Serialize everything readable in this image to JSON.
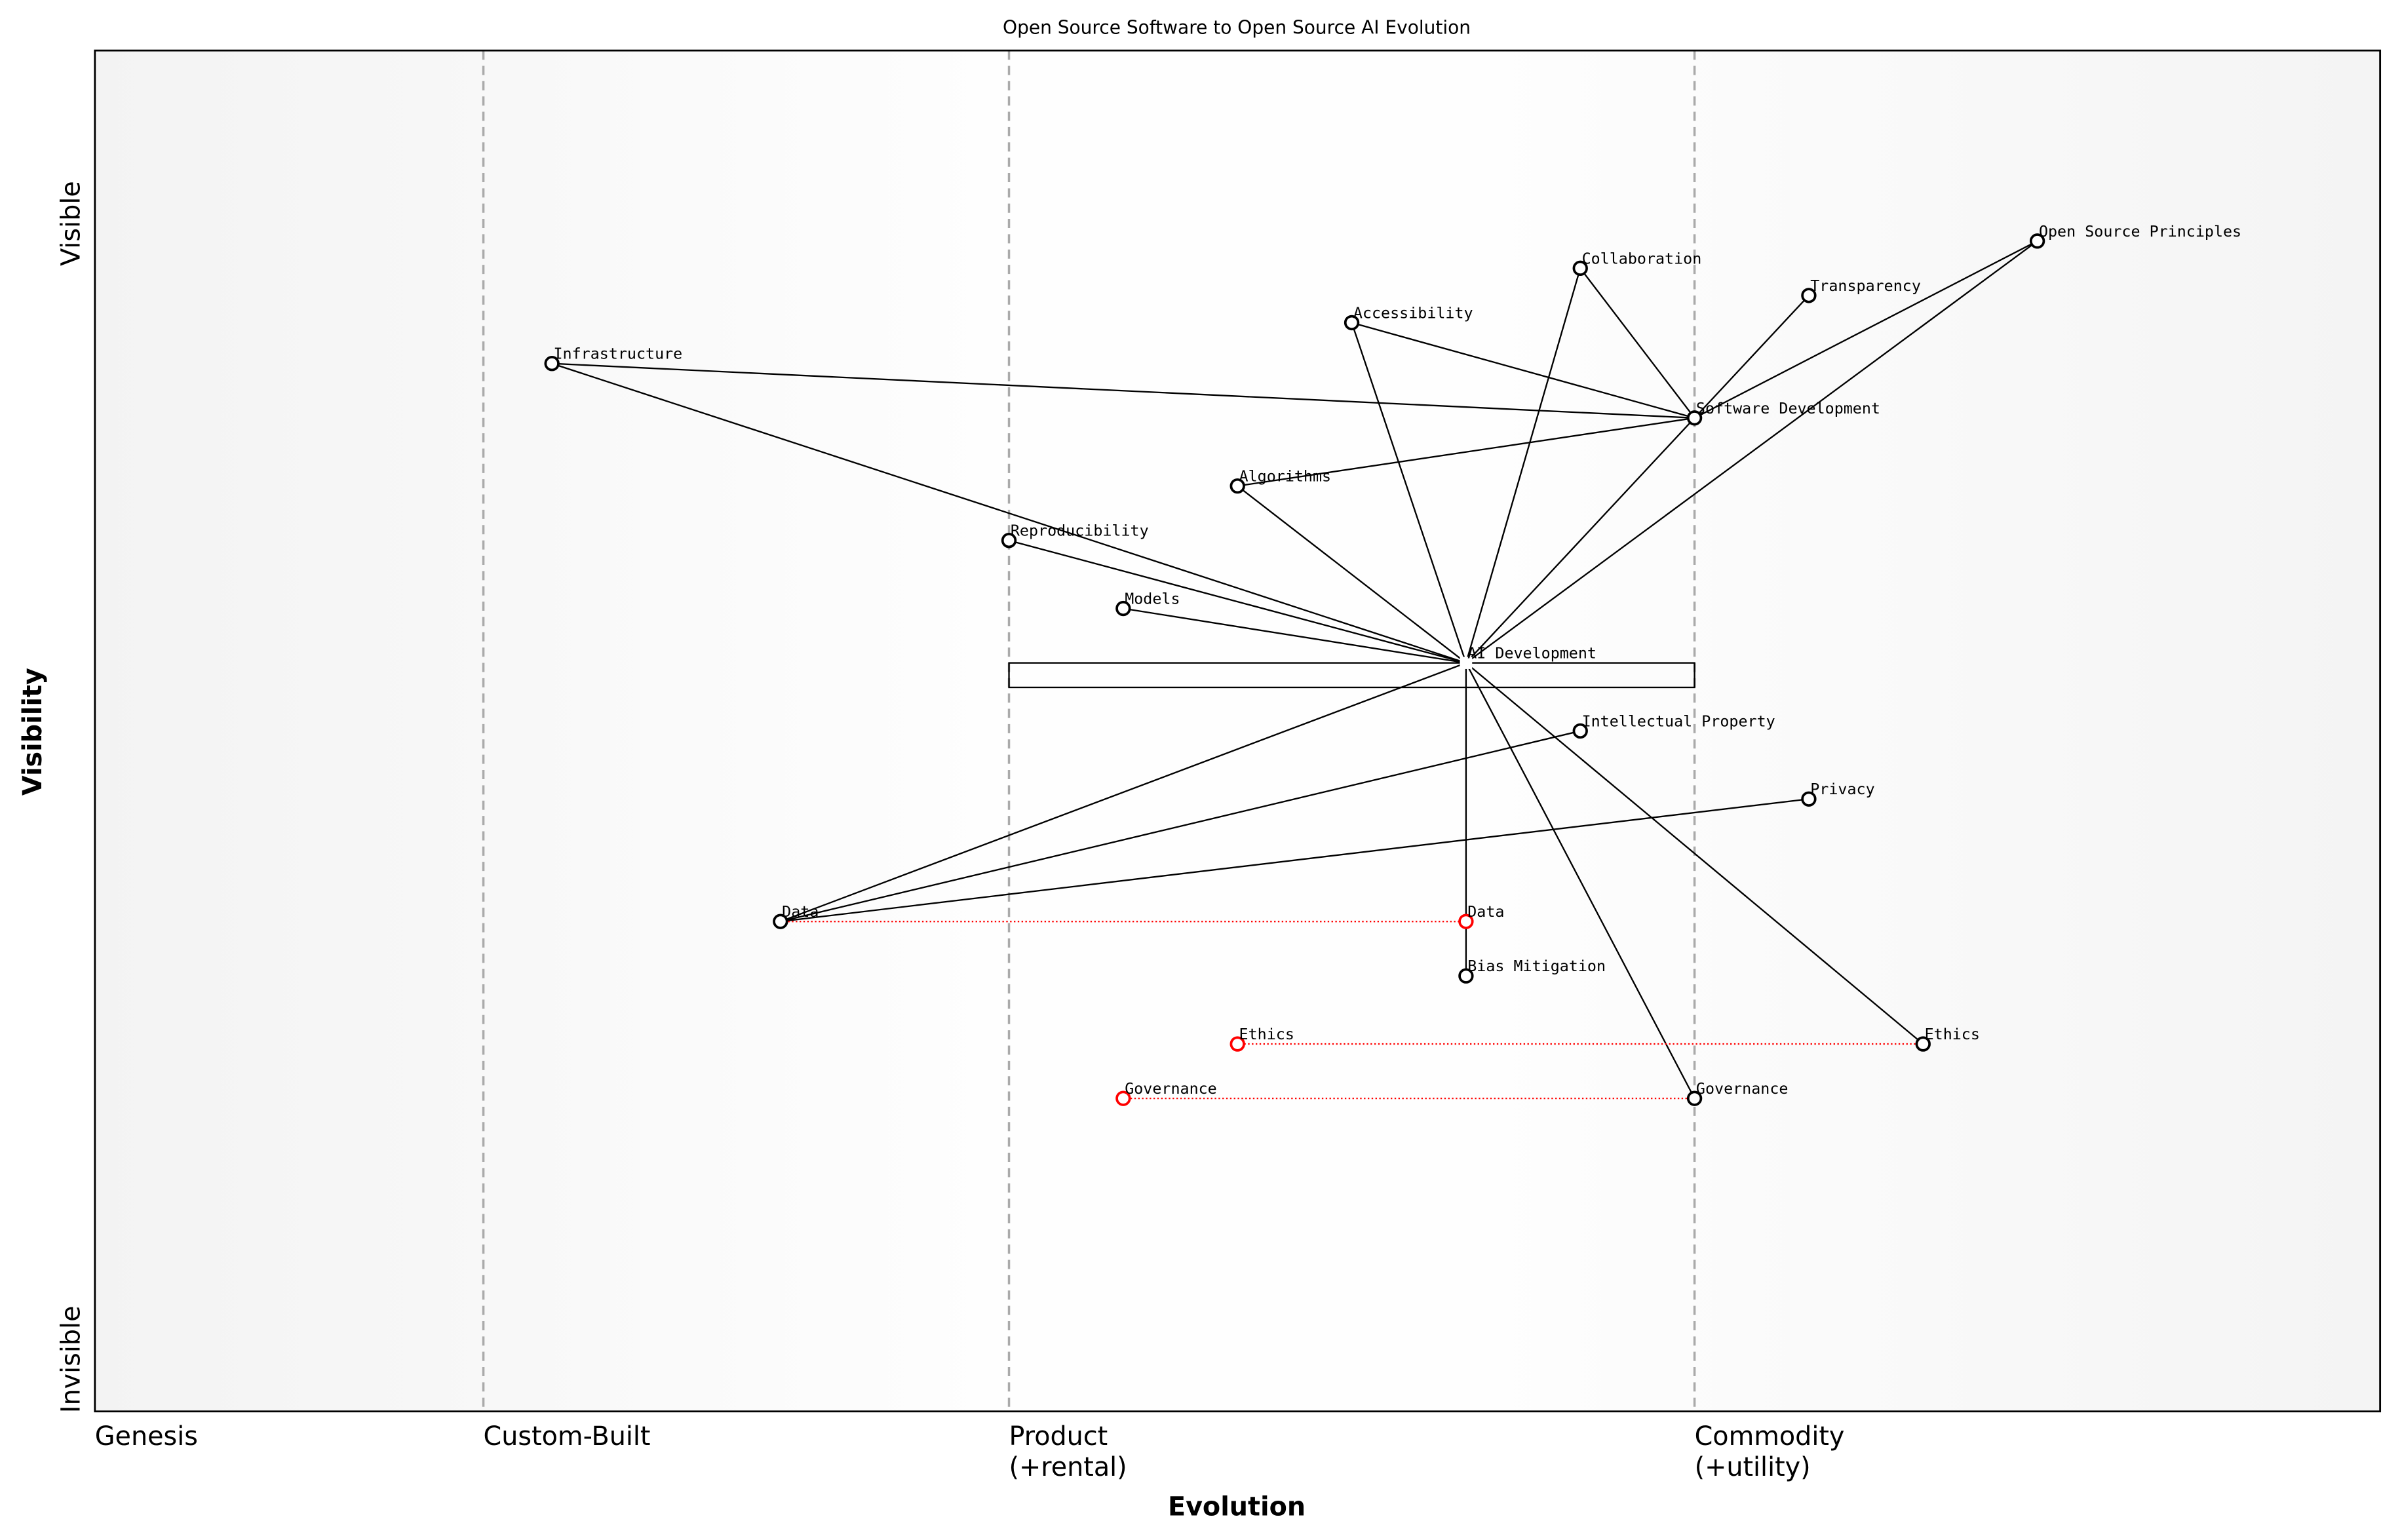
{
  "title": "Open Source Software to Open Source AI Evolution",
  "x_axis": {
    "label": "Evolution",
    "stages": [
      {
        "ev": 0.0,
        "line1": "Genesis",
        "line2": ""
      },
      {
        "ev": 0.17,
        "line1": "Custom-Built",
        "line2": ""
      },
      {
        "ev": 0.4,
        "line1": "Product",
        "line2": "(+rental)"
      },
      {
        "ev": 0.7,
        "line1": "Commodity",
        "line2": "(+utility)"
      }
    ]
  },
  "y_axis": {
    "label": "Visibility",
    "top": "Visible",
    "bottom": "Invisible"
  },
  "colors": {
    "node": "#000000",
    "evolved": "#ff0000",
    "stage_line": "#aaaaaa",
    "edge": "#000000"
  },
  "pipeline": {
    "component": "AI Development",
    "from_ev": 0.4,
    "to_ev": 0.7
  },
  "components": [
    {
      "id": "osp",
      "name": "Open Source Principles",
      "ev": 0.85,
      "vis": 0.86
    },
    {
      "id": "collab",
      "name": "Collaboration",
      "ev": 0.65,
      "vis": 0.84
    },
    {
      "id": "transp",
      "name": "Transparency",
      "ev": 0.75,
      "vis": 0.82
    },
    {
      "id": "access",
      "name": "Accessibility",
      "ev": 0.55,
      "vis": 0.8
    },
    {
      "id": "infra",
      "name": "Infrastructure",
      "ev": 0.2,
      "vis": 0.77
    },
    {
      "id": "swdev",
      "name": "Software Development",
      "ev": 0.7,
      "vis": 0.73
    },
    {
      "id": "algo",
      "name": "Algorithms",
      "ev": 0.5,
      "vis": 0.68
    },
    {
      "id": "repro",
      "name": "Reproducibility",
      "ev": 0.4,
      "vis": 0.64
    },
    {
      "id": "models",
      "name": "Models",
      "ev": 0.45,
      "vis": 0.59
    },
    {
      "id": "aidev",
      "name": "AI Development",
      "ev": 0.6,
      "vis": 0.55,
      "style": "square"
    },
    {
      "id": "ip",
      "name": "Intellectual Property",
      "ev": 0.65,
      "vis": 0.5
    },
    {
      "id": "privacy",
      "name": "Privacy",
      "ev": 0.75,
      "vis": 0.45
    },
    {
      "id": "data",
      "name": "Data",
      "ev": 0.3,
      "vis": 0.36
    },
    {
      "id": "bias",
      "name": "Bias Mitigation",
      "ev": 0.6,
      "vis": 0.32
    },
    {
      "id": "ethics",
      "name": "Ethics",
      "ev": 0.8,
      "vis": 0.27
    },
    {
      "id": "gov",
      "name": "Governance",
      "ev": 0.7,
      "vis": 0.23
    }
  ],
  "evolved": [
    {
      "of": "data",
      "name": "Data",
      "ev": 0.6,
      "vis": 0.36
    },
    {
      "of": "ethics",
      "name": "Ethics",
      "ev": 0.5,
      "vis": 0.27
    },
    {
      "of": "gov",
      "name": "Governance",
      "ev": 0.45,
      "vis": 0.23
    }
  ],
  "links": [
    [
      "infra",
      "swdev"
    ],
    [
      "access",
      "swdev"
    ],
    [
      "collab",
      "swdev"
    ],
    [
      "transp",
      "swdev"
    ],
    [
      "osp",
      "swdev"
    ],
    [
      "algo",
      "swdev"
    ],
    [
      "aidev",
      "infra"
    ],
    [
      "aidev",
      "repro"
    ],
    [
      "aidev",
      "models"
    ],
    [
      "aidev",
      "algo"
    ],
    [
      "aidev",
      "access"
    ],
    [
      "aidev",
      "collab"
    ],
    [
      "aidev",
      "swdev"
    ],
    [
      "aidev",
      "osp"
    ],
    [
      "aidev",
      "data"
    ],
    [
      "aidev",
      "bias"
    ],
    [
      "aidev",
      "gov"
    ],
    [
      "aidev",
      "ethics"
    ],
    [
      "data",
      "ip"
    ],
    [
      "data",
      "privacy"
    ]
  ]
}
